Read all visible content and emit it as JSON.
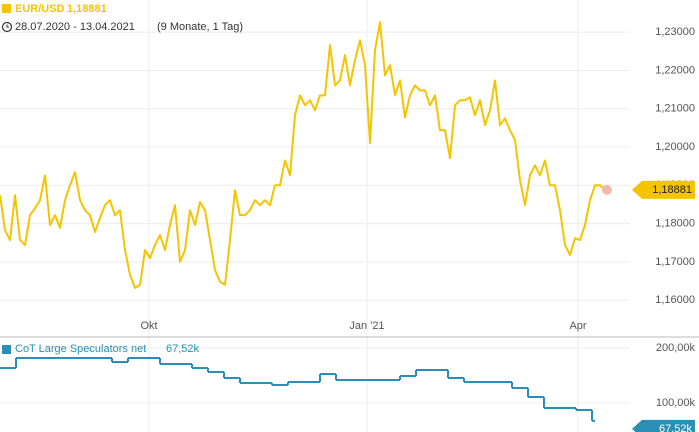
{
  "chart_data": [
    {
      "type": "line",
      "title": "EUR/USD",
      "last_value_label": "1,18881",
      "date_range": "28.07.2020 - 13.04.2021",
      "duration": "(9 Monate, 1 Tag)",
      "color": "#f5c400",
      "values": [
        1.1874,
        1.1783,
        1.1757,
        1.1874,
        1.1757,
        1.1744,
        1.1822,
        1.184,
        1.1861,
        1.1926,
        1.1796,
        1.1822,
        1.1789,
        1.1861,
        1.19,
        1.1934,
        1.1861,
        1.1835,
        1.1822,
        1.1778,
        1.1815,
        1.1848,
        1.1861,
        1.1822,
        1.1835,
        1.1731,
        1.1666,
        1.1632,
        1.164,
        1.1731,
        1.171,
        1.1744,
        1.177,
        1.1731,
        1.1796,
        1.1848,
        1.17,
        1.1731,
        1.1835,
        1.1796,
        1.1856,
        1.1835,
        1.1757,
        1.1679,
        1.1648,
        1.164,
        1.1757,
        1.1887,
        1.1822,
        1.1822,
        1.1835,
        1.1861,
        1.1848,
        1.1861,
        1.1848,
        1.19,
        1.19,
        1.1965,
        1.1926,
        1.2083,
        1.2135,
        1.2109,
        1.2122,
        1.2096,
        1.2135,
        1.2135,
        1.2266,
        1.2161,
        1.2174,
        1.224,
        1.2161,
        1.2227,
        1.2279,
        1.2214,
        1.201,
        1.2253,
        1.2326,
        1.2187,
        1.2214,
        1.2135,
        1.2174,
        1.2077,
        1.2135,
        1.2161,
        1.2148,
        1.2148,
        1.2109,
        1.2135,
        1.2044,
        1.2044,
        1.1971,
        1.2109,
        1.2122,
        1.2122,
        1.213,
        1.2083,
        1.2122,
        1.2057,
        1.2096,
        1.2174,
        1.2057,
        1.2075,
        1.2044,
        1.2018,
        1.1913,
        1.1848,
        1.1926,
        1.1952,
        1.1926,
        1.1965,
        1.19,
        1.19,
        1.1835,
        1.1744,
        1.1718,
        1.1762,
        1.1757,
        1.1796,
        1.1861,
        1.19,
        1.19,
        1.18881
      ],
      "ylim": [
        1.1509,
        1.2384
      ],
      "yticks": [
        {
          "value": 1.16,
          "label": "1,16000"
        },
        {
          "value": 1.17,
          "label": "1,17000"
        },
        {
          "value": 1.18,
          "label": "1,18000"
        },
        {
          "value": 1.19,
          "label": "1,19000"
        },
        {
          "value": 1.2,
          "label": "1,20000"
        },
        {
          "value": 1.21,
          "label": "1,21000"
        },
        {
          "value": 1.22,
          "label": "1,22000"
        },
        {
          "value": 1.23,
          "label": "1,23000"
        }
      ],
      "xticks": [
        {
          "value": 29.8,
          "label": "Okt"
        },
        {
          "value": 73.4,
          "label": "Jan '21"
        },
        {
          "value": 115.6,
          "label": "Apr"
        }
      ],
      "grid": true
    },
    {
      "type": "step",
      "title": "CoT Large Speculators net",
      "last_value_label": "67,52k",
      "color": "#2b8fb3",
      "values": [
        163600,
        181800,
        181800,
        181800,
        181800,
        181800,
        181800,
        174500,
        181800,
        181800,
        170900,
        170900,
        163600,
        156400,
        145500,
        136400,
        136400,
        132700,
        138200,
        138200,
        152700,
        141800,
        141800,
        141800,
        141800,
        149100,
        160000,
        160000,
        145500,
        138200,
        138200,
        138200,
        127300,
        110900,
        90900,
        90900,
        87300,
        67520
      ],
      "ylim": [
        47273,
        214545
      ],
      "yticks": [
        {
          "value": 100000,
          "label": "100,00k"
        },
        {
          "value": 200000,
          "label": "200,00k"
        }
      ],
      "grid": true
    }
  ]
}
